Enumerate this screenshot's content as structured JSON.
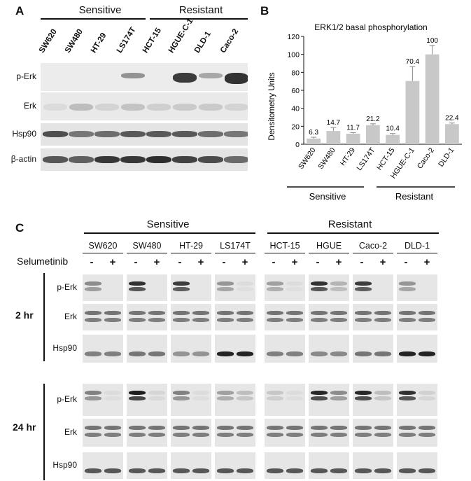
{
  "panel_a": {
    "letter": "A",
    "group_sensitive": "Sensitive",
    "group_resistant": "Resistant",
    "lanes": [
      "SW620",
      "SW480",
      "HT-29",
      "LS174T",
      "HCT-15",
      "HGUE-C-1",
      "DLD-1",
      "Caco-2"
    ],
    "rows": [
      "p-Erk",
      "Erk",
      "Hsp90",
      "β-actin"
    ]
  },
  "chart_data": {
    "type": "bar",
    "title": "ERK1/2 basal phosphorylation",
    "ylabel": "Densitometry Units",
    "xlabel": "",
    "ylim": [
      0,
      120
    ],
    "yticks": [
      0,
      20,
      40,
      60,
      80,
      100,
      120
    ],
    "categories": [
      "SW620",
      "SW480",
      "HT-29",
      "LS174T",
      "HCT-15",
      "HGUE-C-1",
      "Caco-2",
      "DLD-1"
    ],
    "values": [
      6.3,
      14.7,
      11.7,
      21.2,
      10.4,
      70.4,
      100,
      22.4
    ],
    "value_labels": [
      "6.3",
      "14.7",
      "11.7",
      "21.2",
      "10.4",
      "70.4",
      "100",
      "22.4"
    ],
    "errors": [
      1.5,
      4,
      1.2,
      1.5,
      1.5,
      16,
      10,
      1.2
    ],
    "bar_color": "#c8c8c8",
    "group_sensitive": "Sensitive",
    "group_resistant": "Resistant",
    "letter": "B"
  },
  "panel_c": {
    "letter": "C",
    "group_sensitive": "Sensitive",
    "group_resistant": "Resistant",
    "treatment_label": "Selumetinib",
    "cell_lines": [
      "SW620",
      "SW480",
      "HT-29",
      "LS174T",
      "HCT-15",
      "HGUE",
      "Caco-2",
      "DLD-1"
    ],
    "signs": [
      "-",
      "+"
    ],
    "timepoints": [
      "2 hr",
      "24 hr"
    ],
    "rows": [
      "p-Erk",
      "Erk",
      "Hsp90"
    ]
  }
}
